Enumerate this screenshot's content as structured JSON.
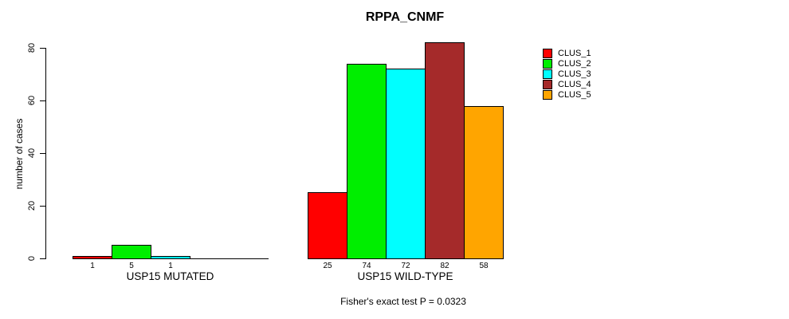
{
  "title": "RPPA_CNMF",
  "y_axis_label": "number of cases",
  "footnote": "Fisher's exact test P = 0.0323",
  "chart_data": {
    "type": "bar",
    "title": "RPPA_CNMF",
    "ylabel": "number of cases",
    "annotation": "Fisher's exact test P = 0.0323",
    "groups": [
      {
        "label": "USP15 MUTATED",
        "values": [
          1,
          5,
          1,
          0,
          0
        ]
      },
      {
        "label": "USP15 WILD-TYPE",
        "values": [
          25,
          74,
          72,
          82,
          58
        ]
      }
    ],
    "series_names": [
      "CLUS_1",
      "CLUS_2",
      "CLUS_3",
      "CLUS_4",
      "CLUS_5"
    ],
    "series_colors": [
      "#FF0000",
      "#00EE00",
      "#00FFFF",
      "#A52A2A",
      "#FFA500"
    ],
    "bar_value_labels_shown_for_nonzero_only": true,
    "yticks": [
      0,
      20,
      40,
      60,
      80
    ],
    "ylim": [
      0,
      82
    ],
    "grid": false,
    "legend_position": "right"
  }
}
